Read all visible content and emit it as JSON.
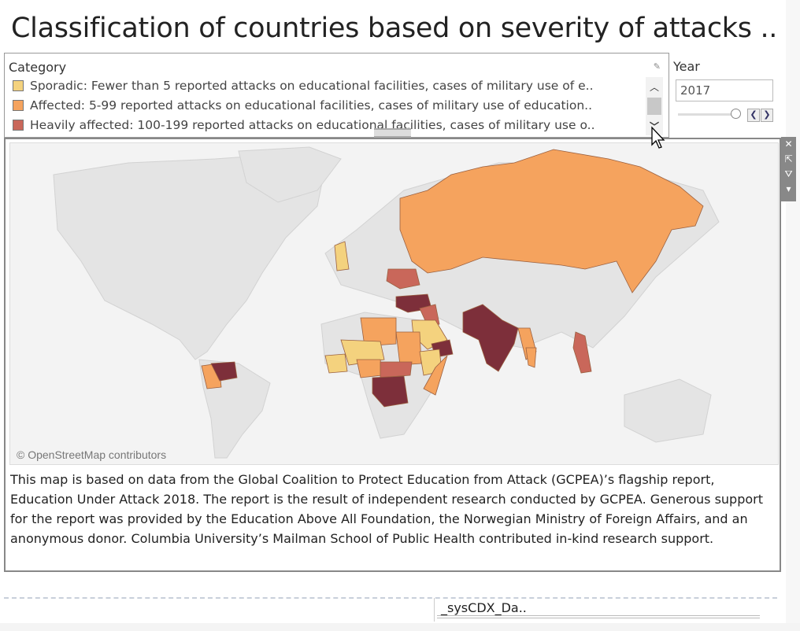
{
  "title": "Classification of countries based on severity of attacks ..",
  "legend": {
    "header": "Category",
    "items": [
      {
        "label": "Sporadic: Fewer than 5 reported attacks on educational facilities, cases of military use of e..",
        "color": "#f4d27e"
      },
      {
        "label": "Affected: 5-99 reported attacks on educational facilities, cases of military use of education..",
        "color": "#f5a35e"
      },
      {
        "label": "Heavily affected: 100-199 reported attacks on educational facilities, cases of military use o..",
        "color": "#c9675a"
      }
    ],
    "very_heavily_color": "#7d2f3a"
  },
  "year": {
    "label": "Year",
    "value": "2017",
    "prev_icon": "chevron-left-icon",
    "next_icon": "chevron-right-icon"
  },
  "map": {
    "attribution": "© OpenStreetMap contributors"
  },
  "description": "This map is based on data from the Global Coalition to Protect Education from Attack (GCPEA)’s flagship report, Education Under Attack 2018. The report is the result of independent research conducted by GCPEA. Generous support for the report was provided by the Education Above All Foundation, the Norwegian Ministry of Foreign Affairs, and an anonymous donor. Columbia University’s Mailman School of Public Health contributed in-kind research support.",
  "toolbar": {
    "close": "✕",
    "popout": "⇱",
    "filter": "⛛",
    "menu": "▾"
  },
  "sys_label": "_sysCDX_Da.."
}
